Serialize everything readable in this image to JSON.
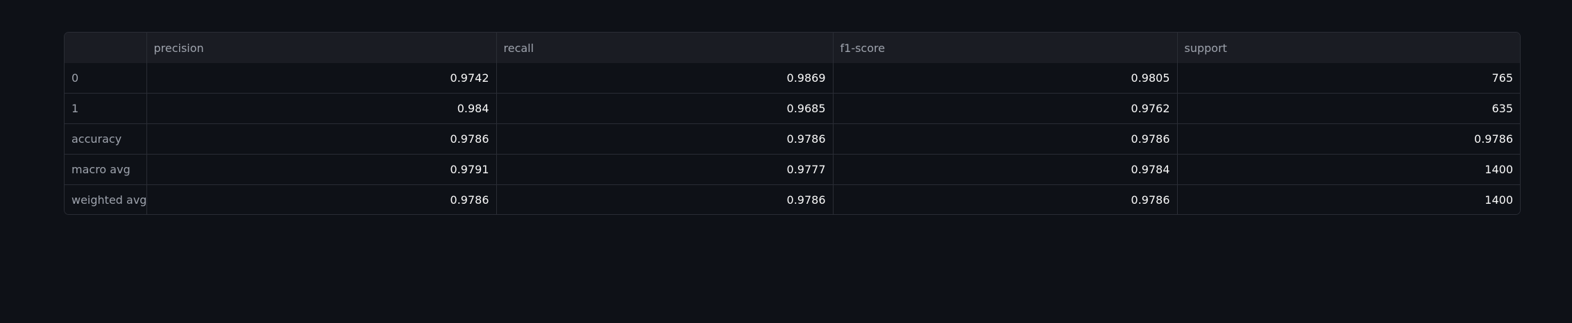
{
  "table": {
    "columns": [
      "",
      "precision",
      "recall",
      "f1-score",
      "support"
    ],
    "rows": [
      {
        "label": "0",
        "values": [
          "0.9742",
          "0.9869",
          "0.9805",
          "765"
        ]
      },
      {
        "label": "1",
        "values": [
          "0.984",
          "0.9685",
          "0.9762",
          "635"
        ]
      },
      {
        "label": "accuracy",
        "values": [
          "0.9786",
          "0.9786",
          "0.9786",
          "0.9786"
        ]
      },
      {
        "label": "macro avg",
        "values": [
          "0.9791",
          "0.9777",
          "0.9784",
          "1400"
        ]
      },
      {
        "label": "weighted avg",
        "values": [
          "0.9786",
          "0.9786",
          "0.9786",
          "1400"
        ]
      }
    ]
  },
  "colors": {
    "background": "#0e1117",
    "header_background": "#1a1c23",
    "border": "#2a2d35",
    "header_text": "#9ea3ad",
    "cell_text": "#fafafa"
  }
}
